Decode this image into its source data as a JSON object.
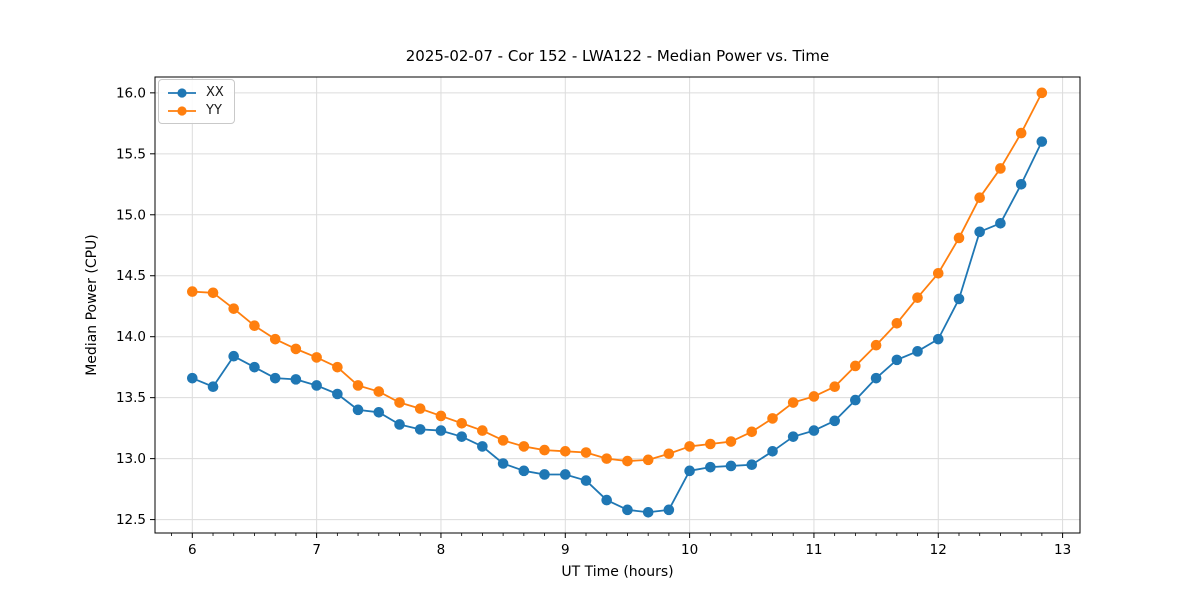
{
  "chart_data": {
    "type": "line",
    "title": "2025-02-07 - Cor 152 - LWA122 - Median Power vs. Time",
    "xlabel": "UT Time (hours)",
    "ylabel": "Median Power (CPU)",
    "xlim": [
      5.7,
      13.14
    ],
    "ylim": [
      12.39,
      16.13
    ],
    "xticks": [
      6,
      7,
      8,
      9,
      10,
      11,
      12,
      13
    ],
    "yticks": [
      12.5,
      13.0,
      13.5,
      14.0,
      14.5,
      15.0,
      15.5,
      16.0
    ],
    "x_minor_tick_step": 0.1667,
    "grid": true,
    "legend_position": "upper-left",
    "colors": {
      "xx_blue": "#1f77b4",
      "yy_orange": "#ff7f0e",
      "grid_gray": "#dcdcdc"
    },
    "x": [
      6.0,
      6.167,
      6.333,
      6.5,
      6.667,
      6.833,
      7.0,
      7.167,
      7.333,
      7.5,
      7.667,
      7.833,
      8.0,
      8.167,
      8.333,
      8.5,
      8.667,
      8.833,
      9.0,
      9.167,
      9.333,
      9.5,
      9.667,
      9.833,
      10.0,
      10.167,
      10.333,
      10.5,
      10.667,
      10.833,
      11.0,
      11.167,
      11.333,
      11.5,
      11.667,
      11.833,
      12.0,
      12.167,
      12.333,
      12.5,
      12.667,
      12.833
    ],
    "series": [
      {
        "name": "XX",
        "color": "#1f77b4",
        "values": [
          13.66,
          13.59,
          13.84,
          13.75,
          13.66,
          13.65,
          13.6,
          13.53,
          13.4,
          13.38,
          13.28,
          13.24,
          13.23,
          13.18,
          13.1,
          12.96,
          12.9,
          12.87,
          12.87,
          12.82,
          12.66,
          12.58,
          12.56,
          12.58,
          12.9,
          12.93,
          12.94,
          12.95,
          13.06,
          13.18,
          13.23,
          13.31,
          13.48,
          13.66,
          13.81,
          13.88,
          13.98,
          14.31,
          14.86,
          14.93,
          15.25,
          15.6
        ]
      },
      {
        "name": "YY",
        "color": "#ff7f0e",
        "values": [
          14.37,
          14.36,
          14.23,
          14.09,
          13.98,
          13.9,
          13.83,
          13.75,
          13.6,
          13.55,
          13.46,
          13.41,
          13.35,
          13.29,
          13.23,
          13.15,
          13.1,
          13.07,
          13.06,
          13.05,
          13.0,
          12.98,
          12.99,
          13.04,
          13.1,
          13.12,
          13.14,
          13.22,
          13.33,
          13.46,
          13.51,
          13.59,
          13.76,
          13.93,
          14.11,
          14.32,
          14.52,
          14.81,
          15.14,
          15.38,
          15.67,
          16.0
        ]
      }
    ]
  }
}
